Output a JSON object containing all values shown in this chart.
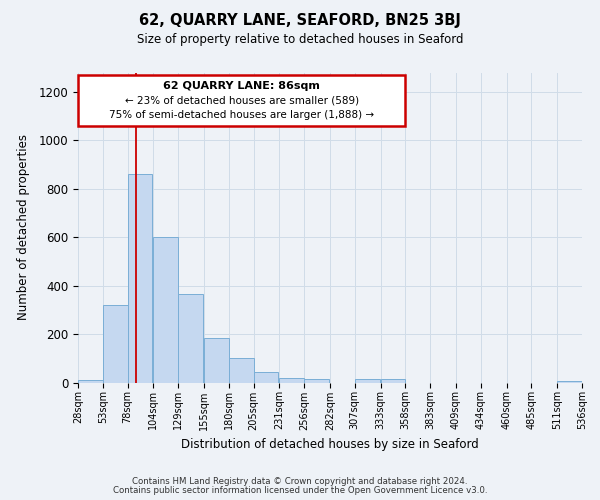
{
  "title": "62, QUARRY LANE, SEAFORD, BN25 3BJ",
  "subtitle": "Size of property relative to detached houses in Seaford",
  "xlabel": "Distribution of detached houses by size in Seaford",
  "ylabel": "Number of detached properties",
  "bar_left_edges": [
    28,
    53,
    78,
    104,
    129,
    155,
    180,
    205,
    231,
    256,
    282,
    307,
    333,
    358,
    383,
    409,
    434,
    460,
    485,
    511
  ],
  "bar_heights": [
    10,
    320,
    860,
    600,
    365,
    185,
    100,
    45,
    20,
    15,
    0,
    15,
    15,
    0,
    0,
    0,
    0,
    0,
    0,
    5
  ],
  "bin_width": 25,
  "bar_color": "#c5d8f0",
  "bar_edge_color": "#7aaed6",
  "tick_labels": [
    "28sqm",
    "53sqm",
    "78sqm",
    "104sqm",
    "129sqm",
    "155sqm",
    "180sqm",
    "205sqm",
    "231sqm",
    "256sqm",
    "282sqm",
    "307sqm",
    "333sqm",
    "358sqm",
    "383sqm",
    "409sqm",
    "434sqm",
    "460sqm",
    "485sqm",
    "511sqm",
    "536sqm"
  ],
  "vline_x": 86,
  "vline_color": "#cc0000",
  "ylim": [
    0,
    1280
  ],
  "yticks": [
    0,
    200,
    400,
    600,
    800,
    1000,
    1200
  ],
  "annotation_title": "62 QUARRY LANE: 86sqm",
  "annotation_line1": "← 23% of detached houses are smaller (589)",
  "annotation_line2": "75% of semi-detached houses are larger (1,888) →",
  "annotation_box_color": "#cc0000",
  "grid_color": "#d0dce8",
  "background_color": "#eef2f7",
  "footnote1": "Contains HM Land Registry data © Crown copyright and database right 2024.",
  "footnote2": "Contains public sector information licensed under the Open Government Licence v3.0."
}
